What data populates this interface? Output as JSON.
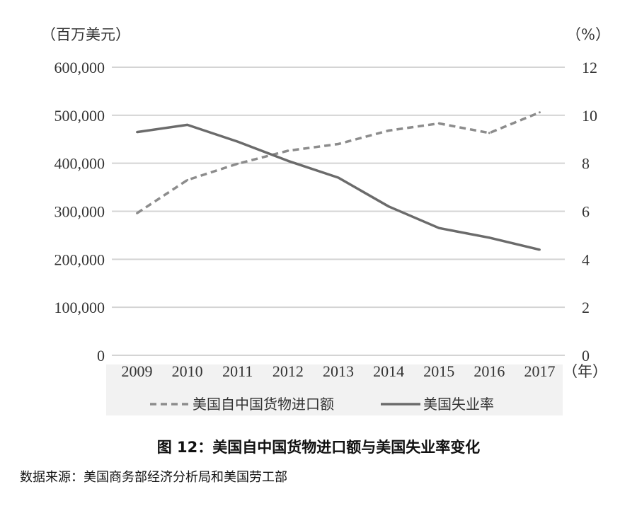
{
  "chart_data": {
    "type": "line",
    "categories": [
      "2009",
      "2010",
      "2011",
      "2012",
      "2013",
      "2014",
      "2015",
      "2016",
      "2017"
    ],
    "x_unit": "（年）",
    "left_axis": {
      "unit": "（百万美元）",
      "ylim": [
        0,
        600000
      ],
      "ticks": [
        "0",
        "100,000",
        "200,000",
        "300,000",
        "400,000",
        "500,000",
        "600,000"
      ]
    },
    "right_axis": {
      "unit": "（%）",
      "ylim": [
        0,
        12
      ],
      "ticks": [
        "0",
        "2",
        "4",
        "6",
        "8",
        "10",
        "12"
      ]
    },
    "series": [
      {
        "name": "美国自中国货物进口额",
        "axis": "left",
        "style": "dashed",
        "color": "#8c8c8c",
        "values": [
          296000,
          365000,
          399000,
          426000,
          440000,
          468000,
          483000,
          463000,
          506000
        ]
      },
      {
        "name": "美国失业率",
        "axis": "right",
        "style": "solid",
        "color": "#6b6b6b",
        "values": [
          9.3,
          9.6,
          8.9,
          8.1,
          7.4,
          6.2,
          5.3,
          4.9,
          4.4
        ]
      }
    ],
    "grid": true,
    "legend_position": "bottom",
    "plot_background": "#ffffff",
    "legend_background": "#f2f2f2",
    "gridline_color": "#d4d4d4"
  },
  "caption": "图 12：美国自中国货物进口额与美国失业率变化",
  "source": "数据来源：美国商务部经济分析局和美国劳工部"
}
